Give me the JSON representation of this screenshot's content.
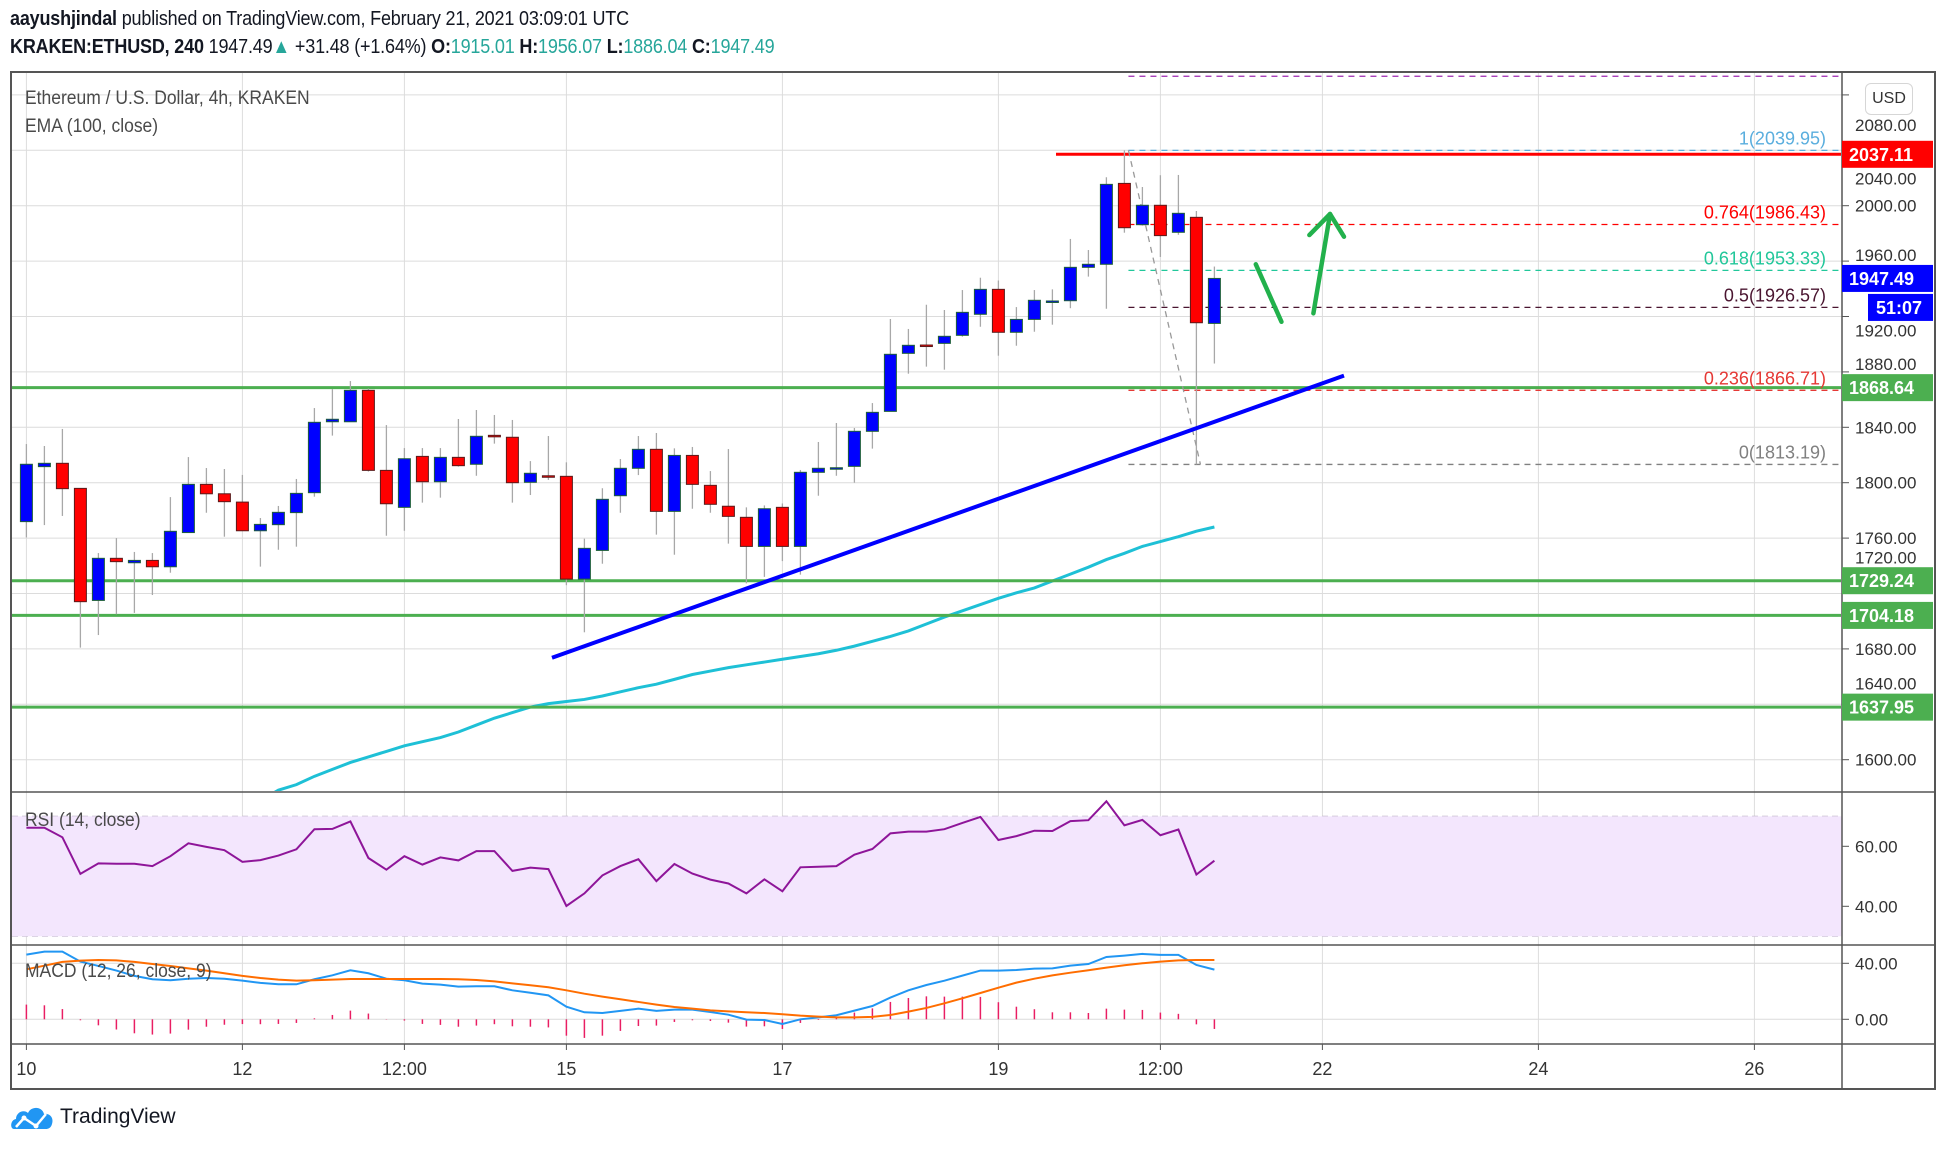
{
  "header": {
    "author": "aayushjindal",
    "published": "published on TradingView.com, February 21, 2021 03:09:01 UTC",
    "symbol": "KRAKEN:ETHUSD, 240",
    "last": "1947.49",
    "change": "+31.48 (+1.64%)",
    "o_label": "O:",
    "o": "1915.01",
    "h_label": "H:",
    "h": "1956.07",
    "l_label": "L:",
    "l": "1886.04",
    "c_label": "C:",
    "c": "1947.49",
    "up_icon": "triangle-up-icon"
  },
  "pane": {
    "title": "Ethereum / U.S. Dollar, 4h, KRAKEN",
    "ema_label": "EMA (100, close)",
    "rsi_label": "RSI (14, close)",
    "macd_label": "MACD (12, 26, close, 9)",
    "currency_button": "USD"
  },
  "footer": {
    "brand": "TradingView"
  },
  "colors": {
    "up": "#0000ff",
    "down": "#ff0000",
    "wick": "#a8a8a8",
    "ema": "#1ec0d6",
    "trendline": "#0000ff",
    "support": "#4caf50",
    "resistance": "#ff0000",
    "rsi": "#8e1599",
    "rsi_band": "#f3e6fd",
    "macd": "#2196f3",
    "signal": "#ff6d00",
    "histogram": "#e91e63",
    "arrows": "#22b14c",
    "accent": "#26a69a"
  },
  "chart_data": {
    "type": "candlestick",
    "title": "Ethereum / U.S. Dollar, 4h, KRAKEN",
    "interval": "240",
    "ylim": [
      1575,
      2110
    ],
    "grid": true,
    "price_ticks": [
      "2080.00",
      "2040.00",
      "2000.00",
      "1960.00",
      "1920.00",
      "1880.00",
      "1840.00",
      "1800.00",
      "1760.00",
      "1720.00",
      "1680.00",
      "1640.00",
      "1600.00"
    ],
    "time_ticks": [
      {
        "label": "10",
        "time": "2021-02-10 00:00"
      },
      {
        "label": "12",
        "time": "2021-02-12 00:00"
      },
      {
        "label": "12:00",
        "time": "2021-02-13 12:00"
      },
      {
        "label": "15",
        "time": "2021-02-15 00:00"
      },
      {
        "label": "17",
        "time": "2021-02-17 00:00"
      },
      {
        "label": "19",
        "time": "2021-02-19 00:00"
      },
      {
        "label": "12:00",
        "time": "2021-02-20 12:00"
      },
      {
        "label": "22",
        "time": "2021-02-22 00:00"
      },
      {
        "label": "24",
        "time": "2021-02-24 00:00"
      },
      {
        "label": "26",
        "time": "2021-02-26 00:00"
      }
    ],
    "candle_columns": [
      "time",
      "open",
      "high",
      "low",
      "close"
    ],
    "candles": [
      [
        "2021-02-10 00:00",
        1771.9,
        1827.9,
        1760.5,
        1813.3
      ],
      [
        "2021-02-10 04:00",
        1811.6,
        1826.5,
        1769.4,
        1814.0
      ],
      [
        "2021-02-10 08:00",
        1814.0,
        1838.8,
        1776.0,
        1795.7
      ],
      [
        "2021-02-10 12:00",
        1795.9,
        1796.0,
        1680.9,
        1714.1
      ],
      [
        "2021-02-10 16:00",
        1715.0,
        1749.2,
        1690.0,
        1745.4
      ],
      [
        "2021-02-10 20:00",
        1745.4,
        1760.0,
        1705.0,
        1743.0
      ],
      [
        "2021-02-11 00:00",
        1742.2,
        1750.0,
        1706.0,
        1743.9
      ],
      [
        "2021-02-11 04:00",
        1743.9,
        1749.2,
        1718.9,
        1739.3
      ],
      [
        "2021-02-11 08:00",
        1739.3,
        1789.6,
        1735.0,
        1764.9
      ],
      [
        "2021-02-11 12:00",
        1764.0,
        1818.5,
        1764.0,
        1798.8
      ],
      [
        "2021-02-11 16:00",
        1798.8,
        1810.6,
        1778.3,
        1792.0
      ],
      [
        "2021-02-11 20:00",
        1792.0,
        1809.9,
        1761.0,
        1786.3
      ],
      [
        "2021-02-12 00:00",
        1786.0,
        1805.6,
        1765.3,
        1765.3
      ],
      [
        "2021-02-12 04:00",
        1765.3,
        1774.5,
        1739.4,
        1769.9
      ],
      [
        "2021-02-12 08:00",
        1769.7,
        1783.2,
        1751.6,
        1778.6
      ],
      [
        "2021-02-12 12:00",
        1778.4,
        1802.7,
        1753.8,
        1792.3
      ],
      [
        "2021-02-12 16:00",
        1792.8,
        1853.9,
        1789.9,
        1843.6
      ],
      [
        "2021-02-12 20:00",
        1844.0,
        1867.6,
        1834.0,
        1845.8
      ],
      [
        "2021-02-13 00:00",
        1844.0,
        1873.4,
        1844.0,
        1866.7
      ],
      [
        "2021-02-13 04:00",
        1866.7,
        1868.0,
        1808.0,
        1808.9
      ],
      [
        "2021-02-13 08:00",
        1808.9,
        1841.6,
        1761.7,
        1784.8
      ],
      [
        "2021-02-13 12:00",
        1782.2,
        1825.0,
        1765.3,
        1817.3
      ],
      [
        "2021-02-13 16:00",
        1819.0,
        1825.0,
        1785.6,
        1800.7
      ],
      [
        "2021-02-13 20:00",
        1800.7,
        1825.0,
        1789.2,
        1818.3
      ],
      [
        "2021-02-14 00:00",
        1818.3,
        1846.0,
        1811.6,
        1812.3
      ],
      [
        "2021-02-14 04:00",
        1813.3,
        1852.5,
        1805.0,
        1833.5
      ],
      [
        "2021-02-14 08:00",
        1834.2,
        1848.9,
        1828.2,
        1834.0
      ],
      [
        "2021-02-14 12:00",
        1832.8,
        1845.3,
        1785.6,
        1800.0
      ],
      [
        "2021-02-14 16:00",
        1800.3,
        1815.6,
        1791.1,
        1806.8
      ],
      [
        "2021-02-14 20:00",
        1805.0,
        1833.7,
        1802.0,
        1804.8
      ],
      [
        "2021-02-15 00:00",
        1804.6,
        1814.7,
        1726.0,
        1730.4
      ],
      [
        "2021-02-15 04:00",
        1730.4,
        1759.6,
        1692.0,
        1752.6
      ],
      [
        "2021-02-15 08:00",
        1751.1,
        1796.0,
        1741.5,
        1788.0
      ],
      [
        "2021-02-15 12:00",
        1790.6,
        1817.1,
        1778.3,
        1810.4
      ],
      [
        "2021-02-15 16:00",
        1810.4,
        1833.7,
        1805.5,
        1824.1
      ],
      [
        "2021-02-15 20:00",
        1824.1,
        1835.9,
        1762.5,
        1779.3
      ],
      [
        "2021-02-16 00:00",
        1779.3,
        1824.8,
        1748.0,
        1819.7
      ],
      [
        "2021-02-16 04:00",
        1819.7,
        1825.8,
        1781.2,
        1798.8
      ],
      [
        "2021-02-16 08:00",
        1798.1,
        1808.4,
        1778.3,
        1784.4
      ],
      [
        "2021-02-16 12:00",
        1783.0,
        1824.3,
        1756.0,
        1775.7
      ],
      [
        "2021-02-16 16:00",
        1775.0,
        1782.2,
        1727.3,
        1754.0
      ],
      [
        "2021-02-16 20:00",
        1754.0,
        1783.6,
        1732.0,
        1781.2
      ],
      [
        "2021-02-17 00:00",
        1782.2,
        1785.0,
        1743.4,
        1754.0
      ],
      [
        "2021-02-17 04:00",
        1754.0,
        1809.2,
        1733.6,
        1807.5
      ],
      [
        "2021-02-17 08:00",
        1807.5,
        1829.4,
        1790.6,
        1810.4
      ],
      [
        "2021-02-17 12:00",
        1810.5,
        1843.1,
        1805.0,
        1810.8
      ],
      [
        "2021-02-17 16:00",
        1811.8,
        1839.5,
        1800.0,
        1837.1
      ],
      [
        "2021-02-17 20:00",
        1837.1,
        1857.5,
        1824.6,
        1850.8
      ],
      [
        "2021-02-18 00:00",
        1851.5,
        1918.2,
        1851.5,
        1892.7
      ],
      [
        "2021-02-18 04:00",
        1893.4,
        1911.0,
        1878.7,
        1899.2
      ],
      [
        "2021-02-18 08:00",
        1899.4,
        1928.5,
        1883.8,
        1899.2
      ],
      [
        "2021-02-18 12:00",
        1900.6,
        1924.7,
        1881.6,
        1905.7
      ],
      [
        "2021-02-18 16:00",
        1906.4,
        1939.1,
        1905.4,
        1923.0
      ],
      [
        "2021-02-18 20:00",
        1921.6,
        1948.0,
        1912.6,
        1939.6
      ],
      [
        "2021-02-19 00:00",
        1939.6,
        1946.0,
        1891.7,
        1908.6
      ],
      [
        "2021-02-19 04:00",
        1908.6,
        1926.8,
        1898.9,
        1917.9
      ],
      [
        "2021-02-19 08:00",
        1917.9,
        1939.1,
        1909.0,
        1931.7
      ],
      [
        "2021-02-19 12:00",
        1931.2,
        1939.6,
        1914.1,
        1931.2
      ],
      [
        "2021-02-19 16:00",
        1931.4,
        1976.0,
        1926.0,
        1955.5
      ],
      [
        "2021-02-19 20:00",
        1955.5,
        1968.0,
        1948.8,
        1957.7
      ],
      [
        "2021-02-20 00:00",
        1957.7,
        2020.5,
        1925.6,
        2015.4
      ],
      [
        "2021-02-20 04:00",
        2016.1,
        2039.95,
        1980.5,
        1984.1
      ],
      [
        "2021-02-20 08:00",
        1986.3,
        2013.5,
        1985.6,
        2000.3
      ],
      [
        "2021-02-20 12:00",
        2000.3,
        2022.0,
        1963.0,
        1978.4
      ],
      [
        "2021-02-20 16:00",
        1980.8,
        2022.2,
        1979.0,
        1994.5
      ],
      [
        "2021-02-20 20:00",
        1991.6,
        1996.2,
        1813.19,
        1915.5
      ],
      [
        "2021-02-21 00:00",
        1915.01,
        1956.07,
        1886.04,
        1947.49
      ]
    ],
    "ema100": [
      null,
      null,
      null,
      null,
      null,
      null,
      null,
      null,
      null,
      null,
      null,
      null,
      null,
      null,
      1578,
      1582,
      1588,
      1593,
      1598,
      1602,
      1606,
      1610,
      1613,
      1616,
      1620,
      1625,
      1630,
      1634,
      1638,
      1640.5,
      1642,
      1643.5,
      1646,
      1649,
      1652,
      1654.5,
      1658,
      1661.5,
      1664,
      1666.5,
      1668.5,
      1670.5,
      1672.5,
      1674.5,
      1676.5,
      1679,
      1682,
      1685.5,
      1689,
      1693,
      1698,
      1703,
      1707.5,
      1712,
      1716.5,
      1720.5,
      1724,
      1729,
      1734,
      1739,
      1744.5,
      1749,
      1754,
      1757.5,
      1761,
      1765,
      1768
    ],
    "horizontal_lines": [
      {
        "price": 2037.11,
        "label": "2037.11",
        "color": "#ff0000",
        "from": "2021-02-19 12:48"
      },
      {
        "price": 1868.64,
        "label": "1868.64",
        "color": "#4caf50"
      },
      {
        "price": 1729.24,
        "label": "1729.24",
        "color": "#4caf50"
      },
      {
        "price": 1704.18,
        "label": "1704.18",
        "color": "#4caf50"
      },
      {
        "price": 1637.95,
        "label": "1637.95",
        "color": "#4caf50"
      }
    ],
    "current_price": {
      "label": "1947.49",
      "price": 1947.49,
      "countdown": "51:07",
      "color": "#0000ff"
    },
    "fibonacci": {
      "from": {
        "time": "2021-02-20 04:54",
        "price": 2039.95
      },
      "to": {
        "time": "2021-02-20 20:54",
        "price": 1813.19
      },
      "levels": [
        {
          "level": 1.236,
          "price": 2093.45,
          "label": "",
          "color": "#9c27b0"
        },
        {
          "level": 1,
          "price": 2039.95,
          "label": "1(2039.95)",
          "color": "#5aaede"
        },
        {
          "level": 0.764,
          "price": 1986.43,
          "label": "0.764(1986.43)",
          "color": "#ff0000"
        },
        {
          "level": 0.618,
          "price": 1953.33,
          "label": "0.618(1953.33)",
          "color": "#21c79a"
        },
        {
          "level": 0.5,
          "price": 1926.57,
          "label": "0.5(1926.57)",
          "color": "#4a1530"
        },
        {
          "level": 0.236,
          "price": 1866.71,
          "label": "0.236(1866.71)",
          "color": "#e53935"
        },
        {
          "level": 0,
          "price": 1813.19,
          "label": "0(1813.19)",
          "color": "#808080"
        }
      ]
    },
    "trendline": [
      {
        "time": "2021-02-14 20:48",
        "price": 1673.6
      },
      {
        "time": "2021-02-22 04:48",
        "price": 1877.3
      }
    ],
    "arrows": [
      [
        {
          "time": "2021-02-21 09:12",
          "price": 1957.7
        },
        {
          "time": "2021-02-21 14:54",
          "price": 1916.2
        }
      ],
      [
        {
          "time": "2021-02-21 22:00",
          "price": 1922.3
        },
        {
          "time": "2021-02-22 01:42",
          "price": 1994.0
        }
      ],
      [
        {
          "time": "2021-02-21 21:06",
          "price": 1978.8
        },
        {
          "time": "2021-02-22 01:42",
          "price": 1994.0
        },
        {
          "time": "2021-02-22 04:48",
          "price": 1977.6
        }
      ]
    ],
    "rsi": {
      "ticks": [
        "60.00",
        "40.00"
      ],
      "band": [
        30,
        70
      ],
      "values": [
        66.2,
        66.2,
        63,
        50.8,
        54.3,
        54.2,
        54.2,
        53.4,
        56.7,
        61,
        59.8,
        58.7,
        54.8,
        55.4,
        56.9,
        59,
        65.7,
        65.8,
        68.3,
        56.1,
        52.2,
        56.7,
        53.9,
        56.3,
        55.3,
        58.4,
        58.4,
        51.8,
        52.9,
        52.4,
        40.1,
        44.3,
        50.3,
        53.4,
        55.7,
        48.4,
        54.1,
        50.9,
        48.9,
        47.6,
        44.3,
        49,
        45,
        53,
        53.2,
        53.4,
        57.2,
        59.1,
        64.3,
        64.9,
        64.9,
        65.7,
        67.8,
        69.8,
        62.1,
        63.4,
        65.2,
        65.1,
        68.4,
        68.7,
        75,
        67,
        68.8,
        63.7,
        65.6,
        50.6,
        55.2
      ]
    },
    "macd": {
      "ticks": [
        "40.00",
        "0.00"
      ],
      "macd": [
        46.2,
        48.3,
        48.3,
        41.2,
        38.1,
        34.8,
        31,
        28.6,
        27.9,
        29,
        29.5,
        29,
        27.6,
        26,
        25,
        25,
        28.6,
        31.4,
        35,
        32.9,
        29,
        27.9,
        25.5,
        24.8,
        23.3,
        23.6,
        23.6,
        20.7,
        19,
        17.1,
        9,
        5,
        4.5,
        6,
        7.6,
        6,
        6.9,
        6.9,
        5.2,
        3.3,
        -0.2,
        -0.5,
        -3.3,
        0,
        1.4,
        2.9,
        6.2,
        9.5,
        15.5,
        20.7,
        24.5,
        27.6,
        31.2,
        34.8,
        34.8,
        35.2,
        36.2,
        36.4,
        38.3,
        39.5,
        44.5,
        45.5,
        46.7,
        46,
        46,
        38.8,
        35.5
      ],
      "signal": [
        35.7,
        38.3,
        41,
        41.9,
        42.4,
        42.1,
        41,
        39.5,
        38.1,
        36.4,
        34.8,
        32.9,
        31,
        29.5,
        28.3,
        27.6,
        27.9,
        28.3,
        28.8,
        28.8,
        28.8,
        28.8,
        28.8,
        28.8,
        28.6,
        28.1,
        27.1,
        25.7,
        24.3,
        22.9,
        20.7,
        18.3,
        16.2,
        14.3,
        12.4,
        10.5,
        8.8,
        7.6,
        6.4,
        5.7,
        5,
        4.5,
        3.6,
        2.6,
        1.9,
        1.4,
        1.4,
        1.7,
        3.1,
        5.5,
        8.1,
        11.4,
        15,
        18.8,
        22.6,
        26.2,
        29,
        31.4,
        33.3,
        35,
        36.9,
        38.6,
        40,
        41.2,
        42.1,
        42.4,
        42.4
      ]
    }
  }
}
